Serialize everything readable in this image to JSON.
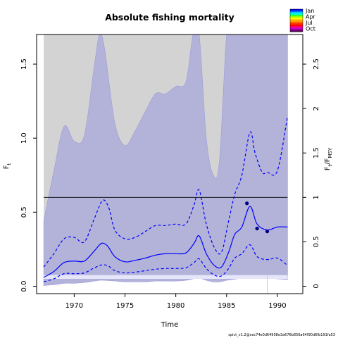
{
  "chart_data": {
    "type": "line",
    "title": "Absolute fishing mortality",
    "xlabel": "Time",
    "ylabel": "F",
    "ylabel_sub": "t",
    "y2label_main": "F",
    "y2label_sub": "t",
    "y2label_div": "/F",
    "y2label_sub2": "MSY",
    "footer": "spict_v1.2@cec74e0d64908e3a676b856a64f90d6fb191fa53",
    "xlim": [
      1966.3,
      1992.5
    ],
    "ylim": [
      -0.05,
      1.7
    ],
    "y2_scale": 0.6,
    "x_ticks": [
      1970,
      1975,
      1980,
      1985,
      1990
    ],
    "y_ticks": [
      {
        "value": 0.0,
        "label": "0.0"
      },
      {
        "value": 0.5,
        "label": "0.5"
      },
      {
        "value": 1.0,
        "label": "1.0"
      },
      {
        "value": 1.5,
        "label": "1.5"
      }
    ],
    "y2_ticks": [
      {
        "value": 0.0,
        "label": "0"
      },
      {
        "value": 0.5,
        "label": "0.5"
      },
      {
        "value": 1.0,
        "label": "1"
      },
      {
        "value": 1.5,
        "label": "1.5"
      },
      {
        "value": 2.0,
        "label": "2"
      },
      {
        "value": 2.5,
        "label": "2.5"
      }
    ],
    "fmsy_line": 0.6,
    "vline_x": 1989,
    "grey_region": {
      "x": [
        1967,
        1968,
        1969,
        1970,
        1971,
        1972,
        1972.5,
        1973,
        1974,
        1975,
        1976,
        1977,
        1978,
        1979,
        1980,
        1981,
        1981.7,
        1982.3,
        1983,
        1983.7,
        1984.3,
        1985,
        1985.5,
        1986,
        1991
      ],
      "upper": [
        1.7,
        1.7,
        1.7,
        1.7,
        1.7,
        1.7,
        1.7,
        1.7,
        1.7,
        1.7,
        1.7,
        1.7,
        1.7,
        1.7,
        1.7,
        1.7,
        1.7,
        1.7,
        1.7,
        1.7,
        1.7,
        1.7,
        1.7,
        1.7,
        1.7
      ],
      "lower": [
        0.44,
        0.78,
        1.08,
        0.98,
        1.02,
        1.5,
        1.7,
        1.6,
        1.1,
        0.95,
        1.05,
        1.18,
        1.3,
        1.3,
        1.35,
        1.38,
        1.7,
        1.7,
        1.0,
        0.75,
        0.85,
        1.7,
        1.7,
        1.7,
        1.7
      ]
    },
    "band_region": {
      "x": [
        1967,
        1968,
        1969,
        1970,
        1971,
        1972,
        1972.5,
        1973,
        1974,
        1975,
        1976,
        1977,
        1978,
        1979,
        1980,
        1981,
        1981.7,
        1982.3,
        1983,
        1983.7,
        1984.3,
        1985,
        1985.5,
        1986,
        1986.5,
        1987,
        1987.5,
        1988,
        1989,
        1990,
        1991
      ],
      "upper": [
        0.44,
        0.78,
        1.08,
        0.98,
        1.02,
        1.5,
        1.7,
        1.6,
        1.1,
        0.95,
        1.05,
        1.18,
        1.3,
        1.3,
        1.35,
        1.38,
        1.7,
        1.7,
        1.0,
        0.75,
        0.85,
        1.7,
        1.7,
        1.7,
        1.7,
        1.7,
        1.7,
        1.7,
        1.7,
        1.7,
        1.7
      ],
      "lower": [
        0.005,
        0.01,
        0.02,
        0.02,
        0.025,
        0.035,
        0.04,
        0.04,
        0.035,
        0.03,
        0.03,
        0.03,
        0.035,
        0.035,
        0.035,
        0.04,
        0.05,
        0.055,
        0.04,
        0.03,
        0.03,
        0.04,
        0.045,
        0.05,
        0.06,
        0.065,
        0.06,
        0.055,
        0.055,
        0.05,
        0.045
      ]
    },
    "fmsy_band": {
      "x": [
        1967,
        1991
      ],
      "lower": 0.05,
      "upper": 0.075
    },
    "series": [
      {
        "id": "estimate",
        "style": "solid",
        "x": [
          1967,
          1968,
          1969,
          1970,
          1971,
          1972,
          1972.7,
          1973.3,
          1974,
          1975,
          1976,
          1977,
          1978,
          1979,
          1980,
          1981,
          1981.8,
          1982.3,
          1983,
          1983.8,
          1984.5,
          1985.2,
          1985.8,
          1986.5,
          1987.3,
          1988,
          1989,
          1990,
          1991
        ],
        "y": [
          0.06,
          0.1,
          0.16,
          0.17,
          0.17,
          0.24,
          0.29,
          0.27,
          0.2,
          0.165,
          0.175,
          0.19,
          0.21,
          0.22,
          0.22,
          0.225,
          0.29,
          0.34,
          0.22,
          0.14,
          0.13,
          0.23,
          0.35,
          0.4,
          0.54,
          0.42,
          0.38,
          0.4,
          0.4
        ]
      },
      {
        "id": "upper_ci",
        "style": "dashed",
        "x": [
          1967,
          1968,
          1969,
          1970,
          1971,
          1972,
          1972.8,
          1973.4,
          1974,
          1975,
          1976,
          1977,
          1978,
          1979,
          1980,
          1981,
          1981.8,
          1982.3,
          1983,
          1983.8,
          1984.5,
          1985.2,
          1985.8,
          1986.5,
          1987.3,
          1987.8,
          1988.5,
          1989,
          1990,
          1991
        ],
        "y": [
          0.13,
          0.22,
          0.32,
          0.33,
          0.3,
          0.46,
          0.58,
          0.53,
          0.38,
          0.32,
          0.33,
          0.37,
          0.41,
          0.41,
          0.42,
          0.42,
          0.55,
          0.65,
          0.42,
          0.26,
          0.23,
          0.44,
          0.62,
          0.75,
          1.04,
          0.9,
          0.77,
          0.77,
          0.78,
          1.15
        ]
      },
      {
        "id": "lower_ci",
        "style": "dashed",
        "x": [
          1967,
          1968,
          1969,
          1970,
          1971,
          1972,
          1972.8,
          1973.4,
          1974,
          1975,
          1976,
          1977,
          1978,
          1979,
          1980,
          1981,
          1981.8,
          1982.3,
          1983,
          1983.8,
          1984.5,
          1985.2,
          1985.8,
          1986.5,
          1987.3,
          1988,
          1989,
          1990,
          1991
        ],
        "y": [
          0.03,
          0.05,
          0.085,
          0.085,
          0.09,
          0.125,
          0.145,
          0.135,
          0.105,
          0.09,
          0.095,
          0.105,
          0.115,
          0.12,
          0.12,
          0.125,
          0.16,
          0.185,
          0.12,
          0.075,
          0.07,
          0.12,
          0.19,
          0.22,
          0.28,
          0.2,
          0.18,
          0.19,
          0.14
        ]
      }
    ],
    "points": [
      {
        "x": 1987,
        "y": 0.56
      },
      {
        "x": 1988,
        "y": 0.39
      },
      {
        "x": 1989,
        "y": 0.37
      }
    ],
    "legend": {
      "labels": [
        "Jan",
        "Apr",
        "Jul",
        "Oct"
      ],
      "placement": "top-right"
    },
    "colors": {
      "grey_region": "#d3d3d3",
      "band_region": "#b3b3d9",
      "fmsy_band": "#e6e6fb",
      "series": "#0000ff",
      "hline": "#000000",
      "vline": "#cccccc"
    }
  }
}
